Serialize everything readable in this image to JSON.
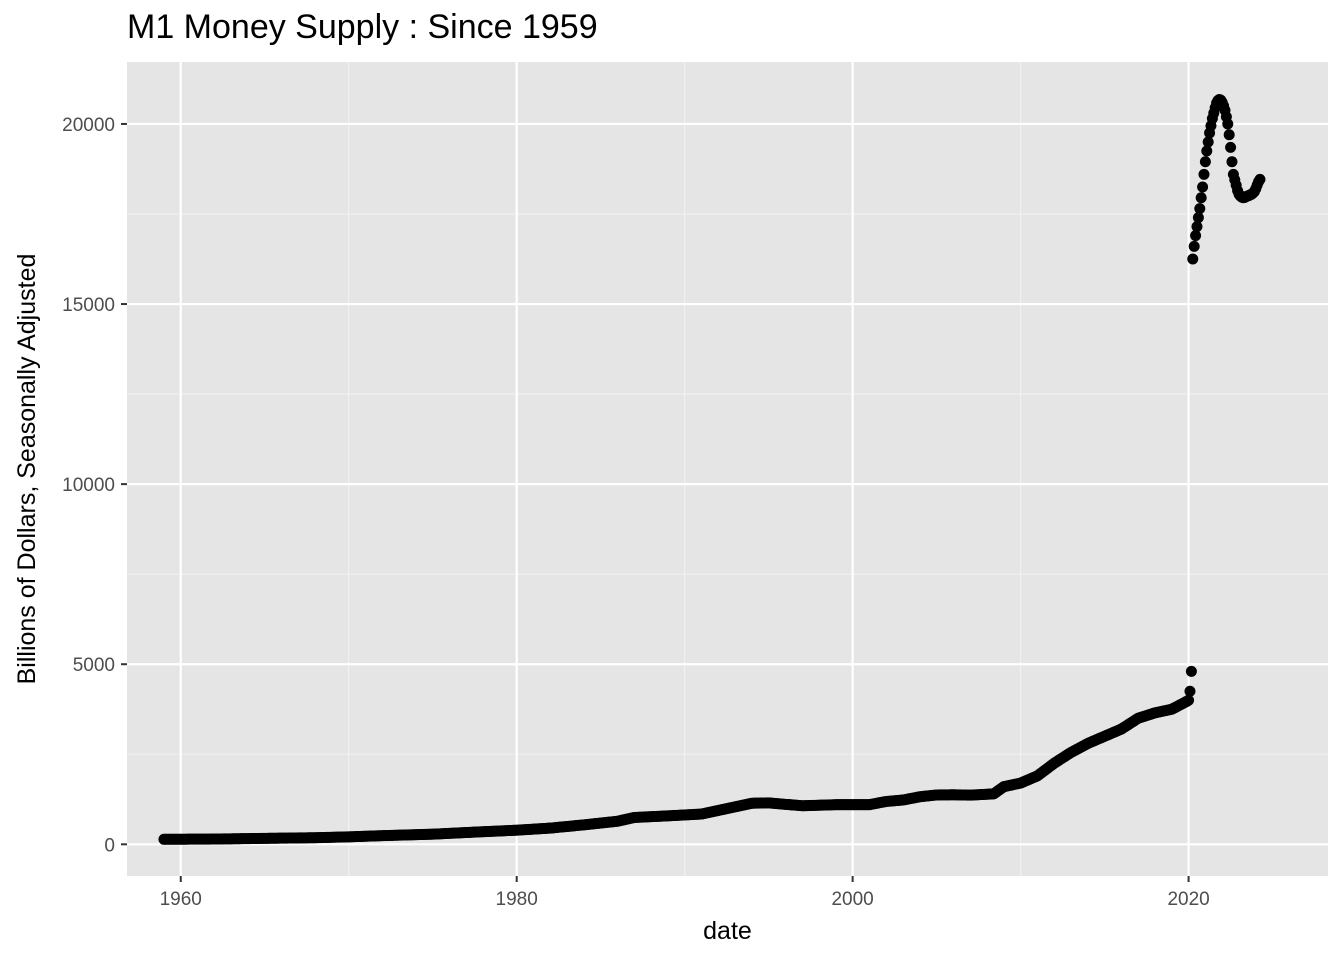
{
  "chart_data": {
    "type": "scatter",
    "title": "M1 Money Supply : Since 1959",
    "xlabel": "date",
    "ylabel": "Billions of Dollars, Seasonally Adjusted",
    "xlim": [
      1956.8,
      2028.3
    ],
    "ylim": [
      -880,
      21720
    ],
    "x_ticks": [
      1960,
      1980,
      2000,
      2020
    ],
    "x_tick_labels": [
      "1960",
      "1980",
      "2000",
      "2020"
    ],
    "y_ticks": [
      0,
      5000,
      10000,
      15000,
      20000
    ],
    "y_tick_labels": [
      "0",
      "5000",
      "10000",
      "15000",
      "20000"
    ],
    "grid": true,
    "background": "#e5e5e5",
    "point_color": "#000000",
    "frequency": "monthly",
    "series": [
      {
        "breakpoints": [
          [
            1959.0,
            139
          ],
          [
            1962.0,
            146
          ],
          [
            1965.0,
            165
          ],
          [
            1968.0,
            183
          ],
          [
            1970.0,
            207
          ],
          [
            1972.0,
            240
          ],
          [
            1975.0,
            281
          ],
          [
            1978.0,
            350
          ],
          [
            1980.0,
            392
          ],
          [
            1982.0,
            450
          ],
          [
            1984.0,
            540
          ],
          [
            1986.0,
            640
          ],
          [
            1987.0,
            745
          ],
          [
            1989.0,
            790
          ],
          [
            1991.0,
            840
          ],
          [
            1992.0,
            940
          ],
          [
            1994.0,
            1140
          ],
          [
            1995.0,
            1150
          ],
          [
            1996.0,
            1110
          ],
          [
            1997.0,
            1070
          ],
          [
            1999.0,
            1100
          ],
          [
            2000.0,
            1100
          ],
          [
            2001.0,
            1100
          ],
          [
            2002.0,
            1190
          ],
          [
            2003.0,
            1230
          ],
          [
            2004.0,
            1320
          ],
          [
            2005.0,
            1370
          ],
          [
            2006.0,
            1375
          ],
          [
            2007.0,
            1365
          ],
          [
            2008.4,
            1400
          ],
          [
            2009.0,
            1600
          ],
          [
            2010.0,
            1700
          ],
          [
            2011.0,
            1900
          ],
          [
            2012.0,
            2250
          ],
          [
            2013.0,
            2550
          ],
          [
            2014.0,
            2800
          ],
          [
            2015.0,
            3000
          ],
          [
            2016.0,
            3200
          ],
          [
            2017.0,
            3500
          ],
          [
            2018.0,
            3650
          ],
          [
            2019.0,
            3750
          ],
          [
            2019.9,
            3970
          ],
          [
            2020.0,
            4000
          ]
        ]
      },
      {
        "points": [
          [
            2020.083,
            4250
          ],
          [
            2020.167,
            4800
          ]
        ]
      },
      {
        "points": [
          [
            2020.25,
            16250
          ],
          [
            2020.333,
            16600
          ],
          [
            2020.417,
            16900
          ],
          [
            2020.5,
            17150
          ],
          [
            2020.583,
            17400
          ],
          [
            2020.667,
            17650
          ],
          [
            2020.75,
            17950
          ],
          [
            2020.833,
            18250
          ],
          [
            2020.917,
            18600
          ],
          [
            2021.0,
            18950
          ],
          [
            2021.083,
            19250
          ],
          [
            2021.167,
            19500
          ],
          [
            2021.25,
            19750
          ],
          [
            2021.333,
            19950
          ],
          [
            2021.417,
            20150
          ],
          [
            2021.5,
            20300
          ],
          [
            2021.583,
            20450
          ],
          [
            2021.667,
            20580
          ],
          [
            2021.75,
            20650
          ],
          [
            2021.833,
            20680
          ],
          [
            2021.917,
            20660
          ],
          [
            2022.0,
            20600
          ],
          [
            2022.083,
            20500
          ],
          [
            2022.167,
            20380
          ],
          [
            2022.25,
            20200
          ],
          [
            2022.333,
            20000
          ],
          [
            2022.417,
            19700
          ],
          [
            2022.5,
            19350
          ],
          [
            2022.583,
            18950
          ],
          [
            2022.667,
            18600
          ],
          [
            2022.75,
            18450
          ],
          [
            2022.833,
            18300
          ],
          [
            2022.917,
            18150
          ],
          [
            2023.0,
            18050
          ],
          [
            2023.083,
            18000
          ],
          [
            2023.167,
            17970
          ],
          [
            2023.25,
            17950
          ],
          [
            2023.333,
            17960
          ],
          [
            2023.417,
            17980
          ],
          [
            2023.5,
            18000
          ],
          [
            2023.583,
            18010
          ],
          [
            2023.667,
            18030
          ],
          [
            2023.75,
            18050
          ],
          [
            2023.833,
            18080
          ],
          [
            2023.917,
            18120
          ],
          [
            2024.0,
            18200
          ],
          [
            2024.083,
            18300
          ],
          [
            2024.167,
            18400
          ],
          [
            2024.25,
            18460
          ]
        ]
      }
    ]
  }
}
